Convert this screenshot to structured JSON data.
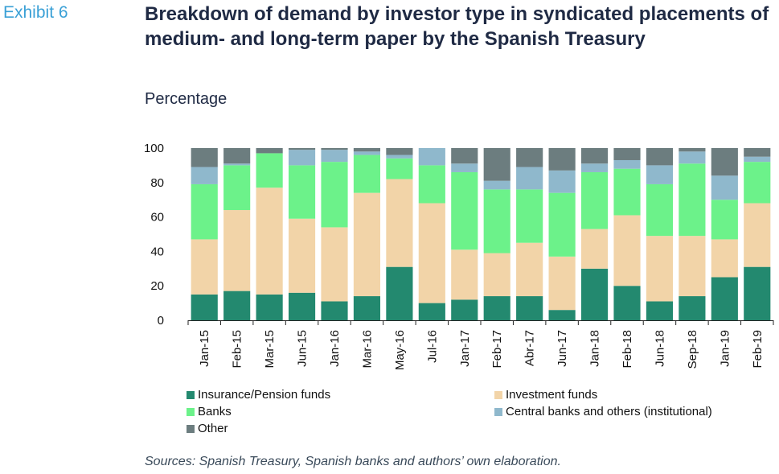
{
  "header": {
    "exhibit": "Exhibit 6",
    "title": "Breakdown of demand by investor type in syndicated placements of medium- and long-term paper by the Spanish Treasury",
    "subtitle": "Percentage"
  },
  "source": "Sources: Spanish Treasury, Spanish banks and authors’ own elaboration.",
  "colors": {
    "insurance": "#23896f",
    "investment": "#f2d4a8",
    "banks": "#6cf28a",
    "central": "#8fb8cc",
    "other": "#6c7d7f"
  },
  "chart_data": {
    "type": "bar",
    "stacked": true,
    "title": "Breakdown of demand by investor type in syndicated placements of medium- and long-term paper by the Spanish Treasury",
    "subtitle": "Percentage",
    "ylim": [
      0,
      100
    ],
    "yticks": [
      0,
      20,
      40,
      60,
      80,
      100
    ],
    "grid": false,
    "legend_position": "bottom",
    "categories": [
      "Jan-15",
      "Feb-15",
      "Mar-15",
      "Jun-15",
      "Jan-16",
      "Mar-16",
      "May-16",
      "Jul-16",
      "Jan-17",
      "Feb-17",
      "Abr-17",
      "Jun-17",
      "Jan-18",
      "Feb-18",
      "Jun-18",
      "Sep-18",
      "Jan-19",
      "Feb-19"
    ],
    "series": [
      {
        "name": "Insurance/Pension funds",
        "color_key": "insurance",
        "values": [
          15,
          17,
          15,
          16,
          11,
          14,
          31,
          10,
          12,
          14,
          14,
          6,
          30,
          20,
          11,
          14,
          25,
          31
        ]
      },
      {
        "name": "Investment funds",
        "color_key": "investment",
        "values": [
          32,
          47,
          62,
          43,
          43,
          60,
          51,
          58,
          29,
          25,
          31,
          31,
          23,
          41,
          38,
          35,
          22,
          37
        ]
      },
      {
        "name": "Banks",
        "color_key": "banks",
        "values": [
          32,
          26,
          20,
          31,
          38,
          22,
          12,
          22,
          45,
          37,
          31,
          37,
          33,
          27,
          30,
          42,
          23,
          24
        ]
      },
      {
        "name": "Central banks and others (institutional)",
        "color_key": "central",
        "values": [
          10,
          1,
          0,
          9,
          7,
          2,
          2,
          10,
          5,
          5,
          13,
          13,
          5,
          5,
          11,
          7,
          14,
          3
        ]
      },
      {
        "name": "Other",
        "color_key": "other",
        "values": [
          11,
          9,
          3,
          1,
          1,
          2,
          4,
          0,
          9,
          19,
          11,
          13,
          9,
          7,
          10,
          2,
          16,
          5
        ]
      }
    ]
  }
}
